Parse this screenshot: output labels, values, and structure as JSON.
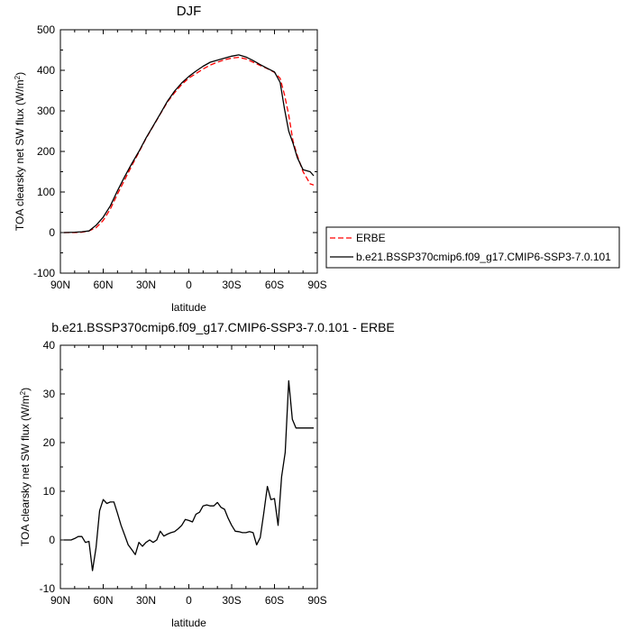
{
  "chart_data": [
    {
      "type": "line",
      "title": "DJF",
      "xlabel": "latitude",
      "ylabel": "TOA clearsky net SW flux (W/m",
      "ylabel_sup": "2",
      "ylabel_tail": ")",
      "xlim": [
        90,
        -90
      ],
      "ylim": [
        -100,
        500
      ],
      "xticks": [
        {
          "value": 90,
          "label": "90N"
        },
        {
          "value": 60,
          "label": "60N"
        },
        {
          "value": 30,
          "label": "30N"
        },
        {
          "value": 0,
          "label": "0"
        },
        {
          "value": -30,
          "label": "30S"
        },
        {
          "value": -60,
          "label": "60S"
        },
        {
          "value": -90,
          "label": "90S"
        }
      ],
      "yticks": [
        -100,
        0,
        100,
        200,
        300,
        400,
        500
      ],
      "legend": "outside-right",
      "series": [
        {
          "name": "ERBE",
          "color": "#ff0000",
          "dash": true,
          "x": [
            87.5,
            80,
            75,
            70,
            65,
            60,
            55,
            50,
            45,
            40,
            35,
            30,
            25,
            20,
            15,
            10,
            5,
            0,
            -5,
            -10,
            -15,
            -20,
            -25,
            -30,
            -35,
            -40,
            -45,
            -50,
            -55,
            -60,
            -64,
            -67,
            -70,
            -73,
            -76,
            -80,
            -85,
            -87.5
          ],
          "y": [
            0,
            0,
            1,
            4,
            12,
            30,
            58,
            95,
            130,
            165,
            198,
            232,
            262,
            292,
            322,
            345,
            365,
            381,
            392,
            403,
            413,
            420,
            426,
            430,
            432,
            428,
            420,
            412,
            404,
            395,
            380,
            340,
            290,
            225,
            190,
            150,
            120,
            117
          ]
        },
        {
          "name": "b.e21.BSSP370cmip6.f09_g17.CMIP6-SSP3-7.0.101",
          "color": "#000000",
          "dash": false,
          "x": [
            87.5,
            80,
            75,
            70,
            65,
            60,
            55,
            50,
            45,
            40,
            35,
            30,
            25,
            20,
            15,
            10,
            5,
            0,
            -5,
            -10,
            -15,
            -20,
            -25,
            -30,
            -35,
            -40,
            -45,
            -50,
            -55,
            -60,
            -64,
            -67,
            -70,
            -73,
            -76,
            -80,
            -85,
            -87.5
          ],
          "y": [
            0,
            1,
            2,
            4,
            18,
            38,
            66,
            103,
            138,
            170,
            200,
            233,
            263,
            293,
            324,
            349,
            369,
            385,
            398,
            410,
            420,
            425,
            430,
            435,
            438,
            433,
            424,
            414,
            405,
            396,
            370,
            305,
            250,
            220,
            185,
            155,
            150,
            140
          ]
        }
      ]
    },
    {
      "type": "line",
      "title": "b.e21.BSSP370cmip6.f09_g17.CMIP6-SSP3-7.0.101 - ERBE",
      "xlabel": "latitude",
      "ylabel": "TOA clearsky net SW flux (W/m",
      "ylabel_sup": "2",
      "ylabel_tail": ")",
      "xlim": [
        90,
        -90
      ],
      "ylim": [
        -10,
        40
      ],
      "xticks": [
        {
          "value": 90,
          "label": "90N"
        },
        {
          "value": 60,
          "label": "60N"
        },
        {
          "value": 30,
          "label": "30N"
        },
        {
          "value": 0,
          "label": "0"
        },
        {
          "value": -30,
          "label": "30S"
        },
        {
          "value": -60,
          "label": "60S"
        },
        {
          "value": -90,
          "label": "90S"
        }
      ],
      "yticks": [
        -10,
        0,
        10,
        20,
        30,
        40
      ],
      "series": [
        {
          "color": "#000000",
          "x": [
            87.5,
            82.5,
            80,
            77.5,
            75,
            72.5,
            70,
            67.5,
            65,
            62.5,
            60,
            57.5,
            55,
            52.5,
            50,
            47.5,
            45,
            42.5,
            40,
            37.5,
            35,
            32.5,
            30,
            27.5,
            25,
            22.5,
            20,
            17.5,
            15,
            12.5,
            10,
            7.5,
            5,
            2.5,
            0,
            -2.5,
            -5,
            -7.5,
            -10,
            -12.5,
            -15,
            -17.5,
            -20,
            -22.5,
            -25,
            -27.5,
            -30,
            -32.5,
            -35,
            -37.5,
            -40,
            -42.5,
            -45,
            -47.5,
            -50,
            -52.5,
            -55,
            -57.5,
            -60,
            -62.5,
            -65,
            -67.5,
            -70,
            -72.5,
            -75,
            -77.5,
            -80,
            -82.5,
            -85,
            -87.5
          ],
          "y": [
            0,
            0,
            0.3,
            0.7,
            0.7,
            -0.5,
            -0.3,
            -6.3,
            -1.5,
            6.0,
            8.3,
            7.5,
            7.8,
            7.8,
            5.5,
            3.0,
            1.0,
            -1.0,
            -2.0,
            -3.0,
            -0.5,
            -1.3,
            -0.5,
            0,
            -0.5,
            0,
            1.8,
            0.8,
            1.2,
            1.5,
            1.7,
            2.3,
            3.0,
            4.2,
            4.0,
            3.7,
            5.3,
            5.7,
            7.0,
            7.2,
            7.0,
            7.0,
            7.7,
            6.7,
            6.3,
            4.5,
            3.0,
            1.8,
            1.7,
            1.5,
            1.5,
            1.7,
            1.5,
            -1.0,
            0.5,
            5.5,
            11.0,
            8.3,
            8.5,
            3.0,
            13.0,
            18.0,
            32.7,
            24.8,
            23.0,
            23.0,
            23.0,
            23.0,
            23.0,
            23.0
          ]
        }
      ]
    }
  ]
}
